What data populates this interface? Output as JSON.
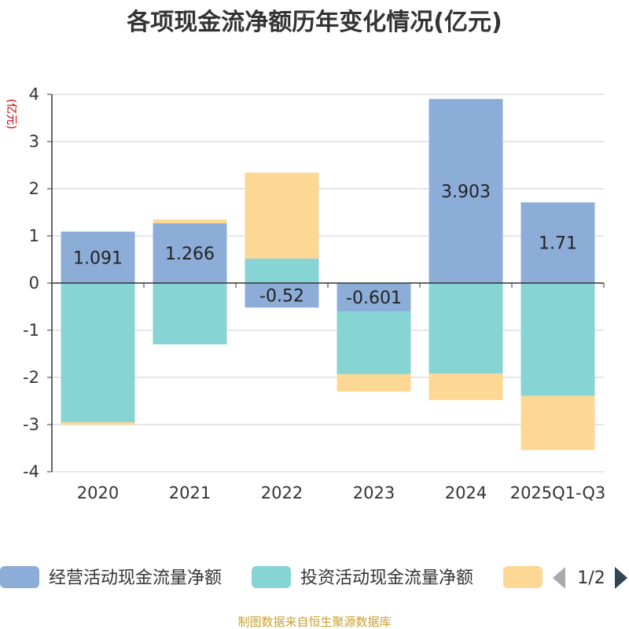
{
  "chart_data": {
    "type": "bar",
    "stacked": true,
    "title": "各项现金流净额历年变化情况(亿元)",
    "ylabel": "(亿元)",
    "ylim": [
      -4,
      4
    ],
    "yticks": [
      4,
      3,
      2,
      1,
      0,
      -1,
      -2,
      -3,
      -4
    ],
    "categories": [
      "2020",
      "2021",
      "2022",
      "2023",
      "2024",
      "2025Q1-Q3"
    ],
    "series": [
      {
        "name": "经营活动现金流量净额",
        "color": "#8dadd9",
        "values": [
          1.091,
          1.266,
          -0.52,
          -0.601,
          3.903,
          1.71
        ]
      },
      {
        "name": "投资活动现金流量净额",
        "color": "#86d4d4",
        "values": [
          -2.95,
          -1.3,
          0.52,
          -1.33,
          -1.92,
          -2.39
        ]
      },
      {
        "name": "",
        "color": "#fdd794",
        "values": [
          -0.05,
          0.08,
          1.82,
          -0.37,
          -0.56,
          -1.15
        ]
      }
    ],
    "data_labels": [
      "1.091",
      "1.266",
      "-0.52",
      "-0.601",
      "3.903",
      "1.71"
    ],
    "legend": {
      "position": "bottom",
      "page": "1/2"
    },
    "source": "制图数据来自恒生聚源数据库"
  }
}
